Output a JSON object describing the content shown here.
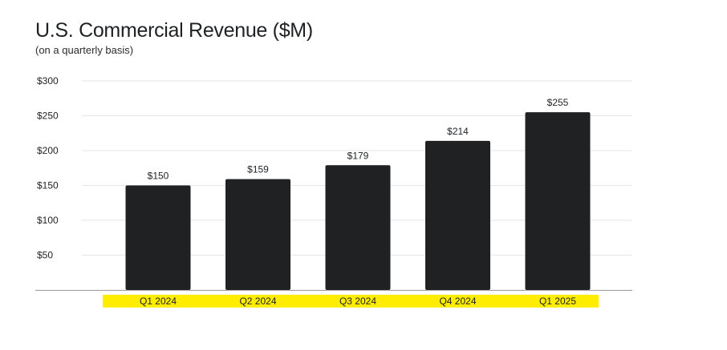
{
  "chart_data": {
    "type": "bar",
    "title": "U.S. Commercial Revenue ($M)",
    "subtitle": "(on a quarterly basis)",
    "categories": [
      "Q1 2024",
      "Q2 2024",
      "Q3 2024",
      "Q4 2024",
      "Q1 2025"
    ],
    "values": [
      150,
      159,
      179,
      214,
      255
    ],
    "data_labels": [
      "$150",
      "$159",
      "$179",
      "$214",
      "$255"
    ],
    "y_ticks": [
      50,
      100,
      150,
      200,
      250,
      300
    ],
    "y_tick_labels": [
      "$50",
      "$100",
      "$150",
      "$200",
      "$250",
      "$300"
    ],
    "ylim": [
      0,
      300
    ],
    "xlabel": "",
    "ylabel": "",
    "grid": true,
    "bar_color": "#1f2123",
    "grid_color": "#e6e6e6",
    "axis_color": "#9a9a9a",
    "category_highlight_color": "#ffed00"
  }
}
